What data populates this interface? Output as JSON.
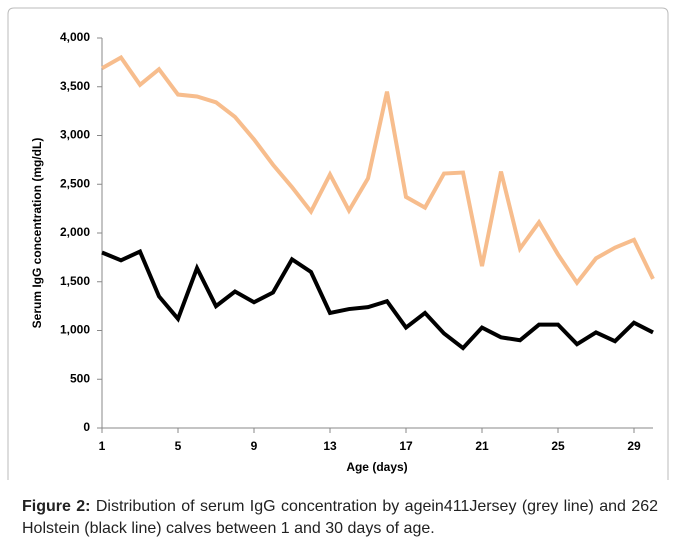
{
  "chart_data": {
    "type": "line",
    "xlabel": "Age (days)",
    "ylabel": "Serum IgG concentration (mg/dL)",
    "x": [
      1,
      2,
      3,
      4,
      5,
      6,
      7,
      8,
      9,
      10,
      11,
      12,
      13,
      14,
      15,
      16,
      17,
      18,
      19,
      20,
      21,
      22,
      23,
      24,
      25,
      26,
      27,
      28,
      29,
      30
    ],
    "series": [
      {
        "color": "#f7bd8d",
        "values": [
          3690,
          3800,
          3520,
          3680,
          3420,
          3400,
          3340,
          3190,
          2960,
          2700,
          2470,
          2220,
          2600,
          2230,
          2560,
          3450,
          2370,
          2260,
          2610,
          2620,
          1660,
          2630,
          1840,
          2110,
          1780,
          1490,
          1740,
          1850,
          1930,
          1530
        ]
      },
      {
        "color": "#000000",
        "values": [
          1800,
          1720,
          1810,
          1350,
          1120,
          1640,
          1250,
          1400,
          1290,
          1390,
          1730,
          1600,
          1180,
          1220,
          1240,
          1300,
          1030,
          1180,
          970,
          820,
          1030,
          930,
          900,
          1060,
          1060,
          860,
          980,
          890,
          1080,
          980
        ]
      }
    ],
    "xlim": [
      1,
      30
    ],
    "xticks": [
      1,
      5,
      9,
      13,
      17,
      21,
      25,
      29
    ],
    "ylim": [
      0,
      4000
    ],
    "yticks": [
      0,
      500,
      {
        "value": 1000,
        "label": "1,000"
      },
      {
        "value": 1500,
        "label": "1,500"
      },
      {
        "value": 2000,
        "label": "2,000"
      },
      {
        "value": 2500,
        "label": "2,500"
      },
      {
        "value": 3000,
        "label": "3,000"
      },
      {
        "value": 3500,
        "label": "3,500"
      },
      {
        "value": 4000,
        "label": "4,000"
      }
    ]
  },
  "caption": {
    "label": "Figure 2:",
    "text": "Distribution of serum IgG concentration by agein411Jersey (grey line) and 262 Holstein (black line) calves between 1 and 30 days of age."
  }
}
